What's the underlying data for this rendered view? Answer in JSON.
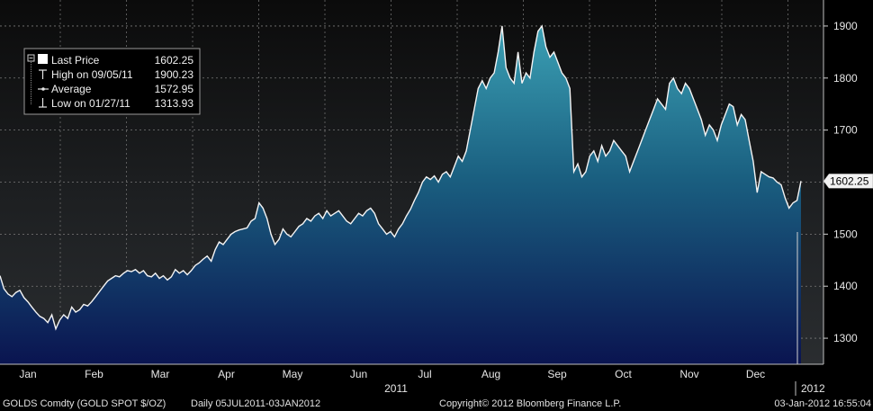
{
  "chart_data": {
    "type": "area",
    "instrument": "GOLDS Comdty (GOLD SPOT $/OZ)",
    "frequency": "Daily 05JUL2011-03JAN2012",
    "copyright": "Copyright© 2012 Bloomberg Finance L.P.",
    "timestamp": "03-Jan-2012 16:55:04",
    "year_label": "2011",
    "year_label_next": "2012",
    "ylim": [
      1250,
      1950
    ],
    "y_ticks": [
      1300,
      1400,
      1500,
      1600,
      1700,
      1800,
      1900
    ],
    "months": [
      "Jan",
      "Feb",
      "Mar",
      "Apr",
      "May",
      "Jun",
      "Jul",
      "Aug",
      "Sep",
      "Oct",
      "Nov",
      "Dec"
    ],
    "last_price_label": "1602.25",
    "legend": [
      {
        "label": "Last Price",
        "value": "1602.25"
      },
      {
        "label": "High on 09/05/11",
        "value": "1900.23"
      },
      {
        "label": "Average",
        "value": "1572.95"
      },
      {
        "label": "Low on 01/27/11",
        "value": "1313.93"
      }
    ],
    "series": [
      {
        "values": [
          1420,
          1395,
          1385,
          1380,
          1388,
          1392,
          1378,
          1370,
          1360,
          1350,
          1342,
          1338,
          1330,
          1345,
          1318,
          1335,
          1345,
          1338,
          1360,
          1350,
          1355,
          1365,
          1362,
          1370,
          1380,
          1390,
          1400,
          1410,
          1415,
          1420,
          1418,
          1425,
          1430,
          1428,
          1432,
          1425,
          1430,
          1420,
          1418,
          1425,
          1415,
          1420,
          1412,
          1418,
          1432,
          1425,
          1430,
          1422,
          1430,
          1440,
          1445,
          1452,
          1458,
          1448,
          1470,
          1485,
          1480,
          1490,
          1500,
          1505,
          1508,
          1510,
          1512,
          1525,
          1530,
          1560,
          1550,
          1530,
          1500,
          1480,
          1490,
          1510,
          1500,
          1495,
          1505,
          1515,
          1520,
          1530,
          1525,
          1535,
          1540,
          1530,
          1545,
          1535,
          1540,
          1545,
          1535,
          1525,
          1520,
          1530,
          1540,
          1535,
          1545,
          1550,
          1540,
          1520,
          1510,
          1500,
          1505,
          1495,
          1510,
          1520,
          1535,
          1548,
          1565,
          1580,
          1600,
          1610,
          1605,
          1612,
          1600,
          1615,
          1620,
          1610,
          1630,
          1650,
          1640,
          1660,
          1700,
          1740,
          1780,
          1795,
          1780,
          1800,
          1810,
          1850,
          1900,
          1820,
          1800,
          1790,
          1850,
          1790,
          1810,
          1800,
          1850,
          1890,
          1900,
          1860,
          1840,
          1850,
          1830,
          1810,
          1800,
          1780,
          1620,
          1635,
          1610,
          1620,
          1650,
          1660,
          1640,
          1670,
          1650,
          1660,
          1680,
          1670,
          1660,
          1650,
          1620,
          1640,
          1660,
          1680,
          1700,
          1720,
          1740,
          1760,
          1750,
          1740,
          1790,
          1800,
          1780,
          1770,
          1790,
          1780,
          1760,
          1740,
          1720,
          1690,
          1710,
          1700,
          1680,
          1710,
          1730,
          1750,
          1745,
          1710,
          1730,
          1720,
          1680,
          1640,
          1580,
          1620,
          1615,
          1610,
          1608,
          1600,
          1595,
          1570,
          1550,
          1560,
          1565,
          1602
        ]
      }
    ]
  }
}
